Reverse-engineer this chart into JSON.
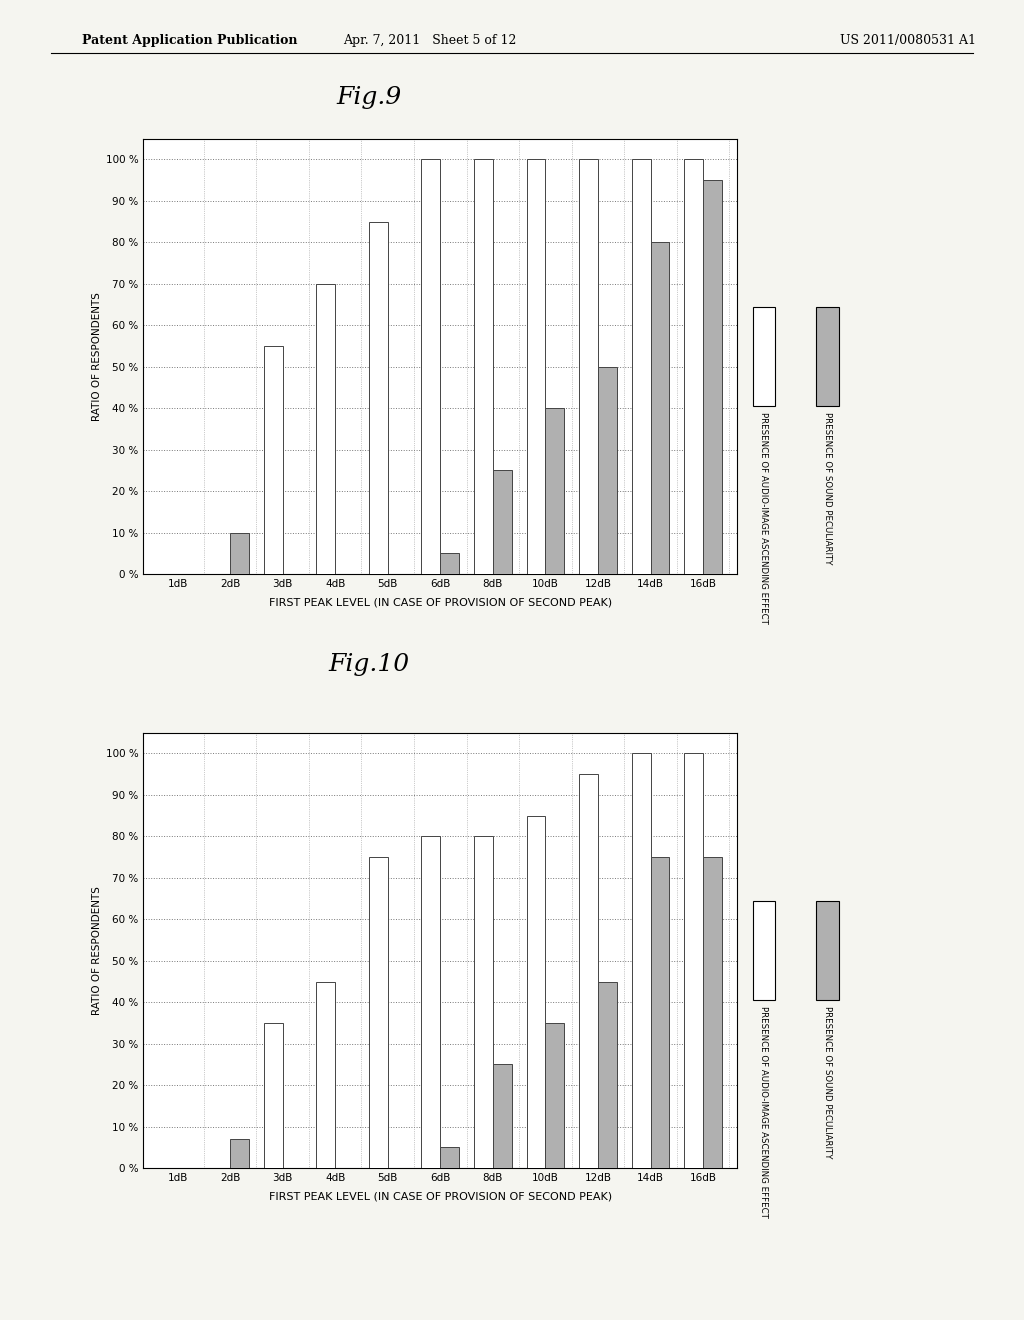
{
  "fig9_title": "Fig.9",
  "fig10_title": "Fig.10",
  "categories": [
    "1dB",
    "2dB",
    "3dB",
    "4dB",
    "5dB",
    "6dB",
    "8dB",
    "10dB",
    "12dB",
    "14dB",
    "16dB"
  ],
  "fig9_white": [
    0,
    0,
    55,
    70,
    85,
    100,
    100,
    100,
    100,
    100,
    100
  ],
  "fig9_gray": [
    0,
    10,
    0,
    0,
    0,
    5,
    25,
    40,
    50,
    80,
    95
  ],
  "fig10_white": [
    0,
    0,
    35,
    45,
    75,
    80,
    80,
    85,
    95,
    100,
    100
  ],
  "fig10_gray": [
    0,
    7,
    0,
    0,
    0,
    5,
    25,
    35,
    45,
    75,
    75
  ],
  "ylabel": "RATIO OF RESPONDENTS",
  "xlabel": "FIRST PEAK LEVEL (IN CASE OF PROVISION OF SECOND PEAK)",
  "legend_white": "PRESENCE OF AUDIO-IMAGE ASCENDING EFFECT",
  "legend_gray": "PRESENCE OF SOUND PECULIARITY",
  "white_color": "#ffffff",
  "gray_color": "#b0b0b0",
  "bar_edge_color": "#444444",
  "background_color": "#f5f5f0",
  "header_left": "Patent Application Publication",
  "header_mid": "Apr. 7, 2011   Sheet 5 of 12",
  "header_right": "US 2011/0080531 A1"
}
